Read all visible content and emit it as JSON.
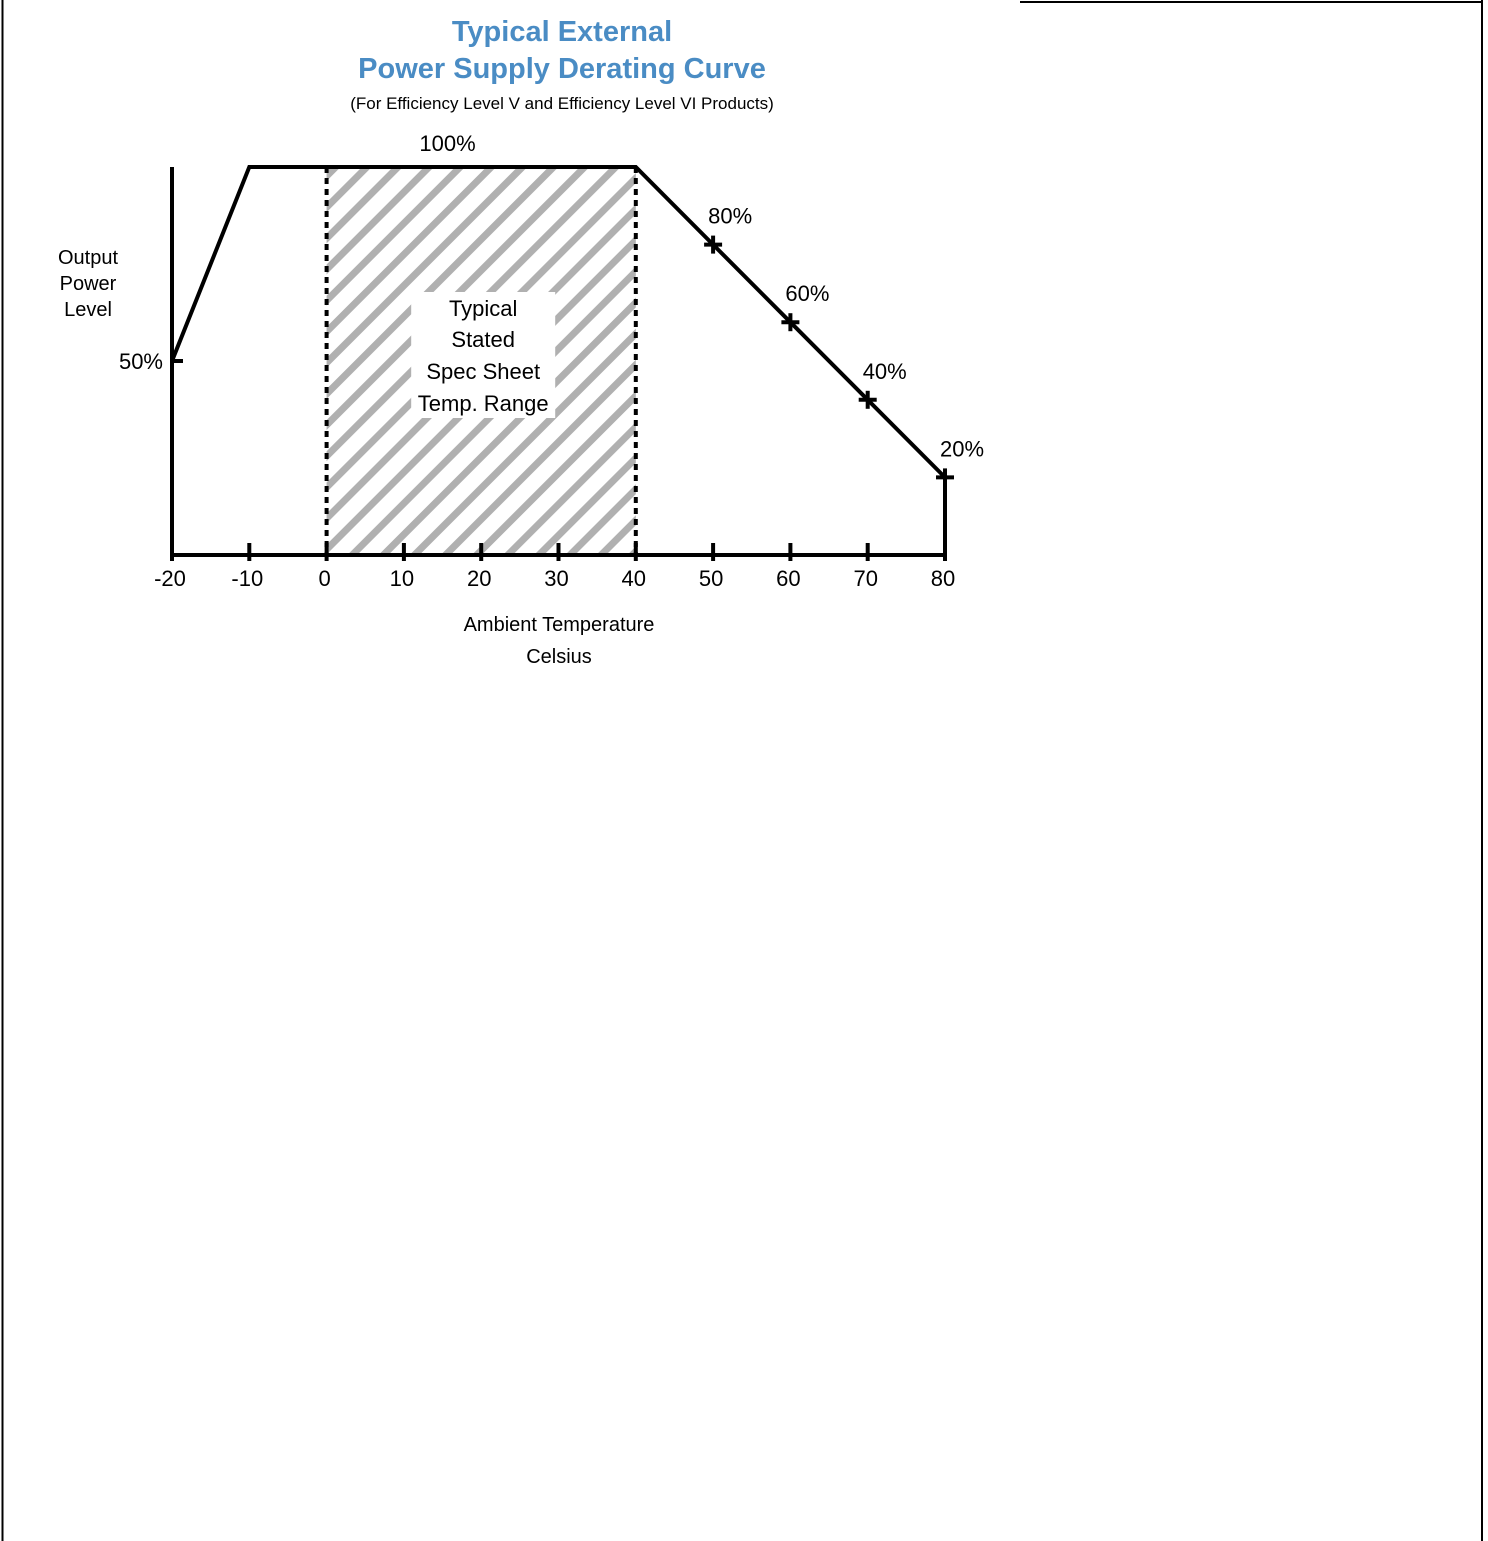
{
  "chart_data": {
    "type": "line",
    "title": [
      "Typical External",
      "Power Supply Derating Curve"
    ],
    "subtitle": "(For Efficiency Level V and Efficiency Level VI Products)",
    "xlabel": [
      "Ambient Temperature",
      "Celsius"
    ],
    "ylabel": [
      "Output",
      "Power",
      "Level"
    ],
    "x_ticks": [
      -20,
      -10,
      0,
      10,
      20,
      30,
      40,
      50,
      60,
      70,
      80
    ],
    "xlim": [
      -20,
      80
    ],
    "ylim": [
      0,
      100
    ],
    "grid": false,
    "legend": "none",
    "series": [
      {
        "x": [
          -20,
          -10,
          40,
          50,
          60,
          70,
          80
        ],
        "y": [
          50,
          100,
          100,
          80,
          60,
          40,
          20
        ]
      }
    ],
    "point_labels": [
      {
        "x": -20,
        "y": 50,
        "text": "50%"
      },
      {
        "x": 15,
        "y": 100,
        "text": "100%"
      },
      {
        "x": 50,
        "y": 80,
        "text": "80%"
      },
      {
        "x": 60,
        "y": 60,
        "text": "60%"
      },
      {
        "x": 70,
        "y": 40,
        "text": "40%"
      },
      {
        "x": 80,
        "y": 20,
        "text": "20%"
      }
    ],
    "shaded_region": {
      "x_start": 0,
      "x_end": 40,
      "label": [
        "Typical",
        "Stated",
        "Spec Sheet",
        "Temp. Range"
      ]
    },
    "colors": {
      "title": "#4a8cc4",
      "line": "#000000",
      "hatch": "#b0b0b0"
    }
  }
}
